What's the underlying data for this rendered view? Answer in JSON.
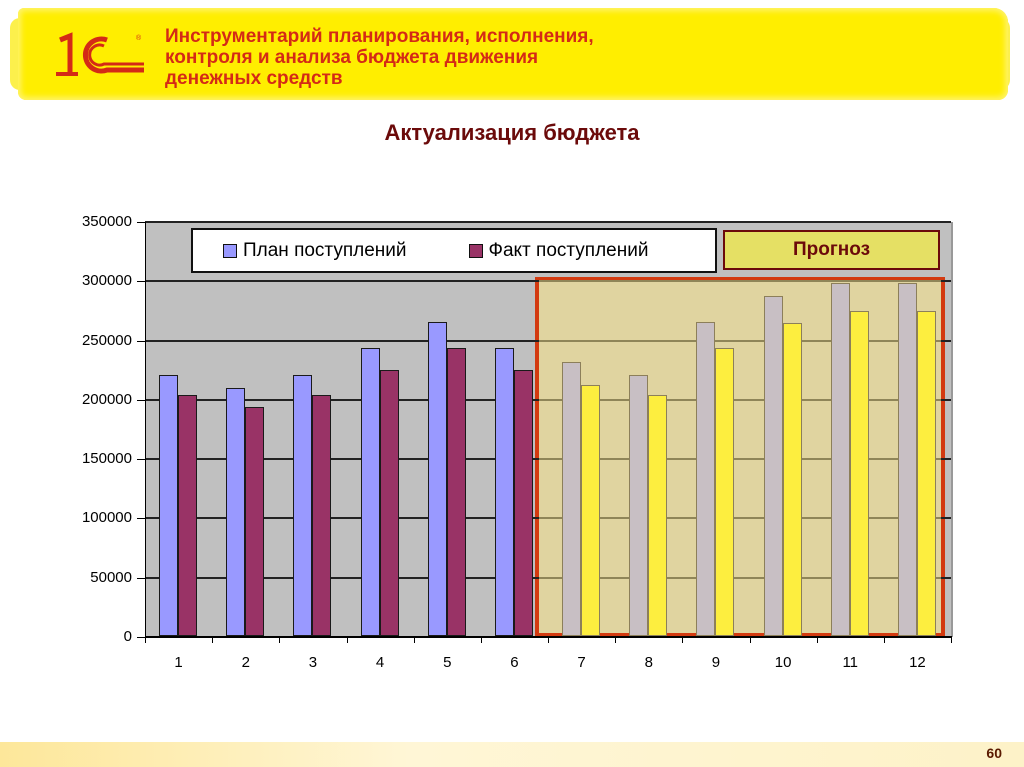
{
  "header": {
    "title_line1": "Инструментарий планирования, исполнения,",
    "title_line2": "контроля и анализа бюджета движения",
    "title_line3": "денежных средств",
    "logo": "1С"
  },
  "forecast_label": "Прогноз",
  "page_number": "60",
  "chart_data": {
    "type": "bar",
    "title": "Актуализация бюджета",
    "xlabel": "",
    "ylabel": "",
    "categories": [
      "1",
      "2",
      "3",
      "4",
      "5",
      "6",
      "7",
      "8",
      "9",
      "10",
      "11",
      "12"
    ],
    "series": [
      {
        "name": "План поступлений",
        "color": "#9999ff",
        "forecast_color": "#c8bfc4",
        "values": [
          220000,
          209000,
          220000,
          243000,
          265000,
          243000,
          231000,
          220000,
          265000,
          287000,
          298000,
          298000
        ]
      },
      {
        "name": "Факт поступлений",
        "color": "#993366",
        "forecast_color": "#fdee3f",
        "values": [
          203000,
          193000,
          203000,
          224000,
          243000,
          224000,
          212000,
          203000,
          243000,
          264000,
          274000,
          274000
        ]
      }
    ],
    "yticks": [
      "0",
      "50000",
      "100000",
      "150000",
      "200000",
      "250000",
      "300000",
      "350000"
    ],
    "ylim": [
      0,
      350000
    ],
    "grid": true,
    "legend_position": "top",
    "annotations": [
      {
        "text": "Прогноз",
        "applies_to_categories": [
          "7",
          "8",
          "9",
          "10",
          "11",
          "12"
        ]
      }
    ]
  }
}
